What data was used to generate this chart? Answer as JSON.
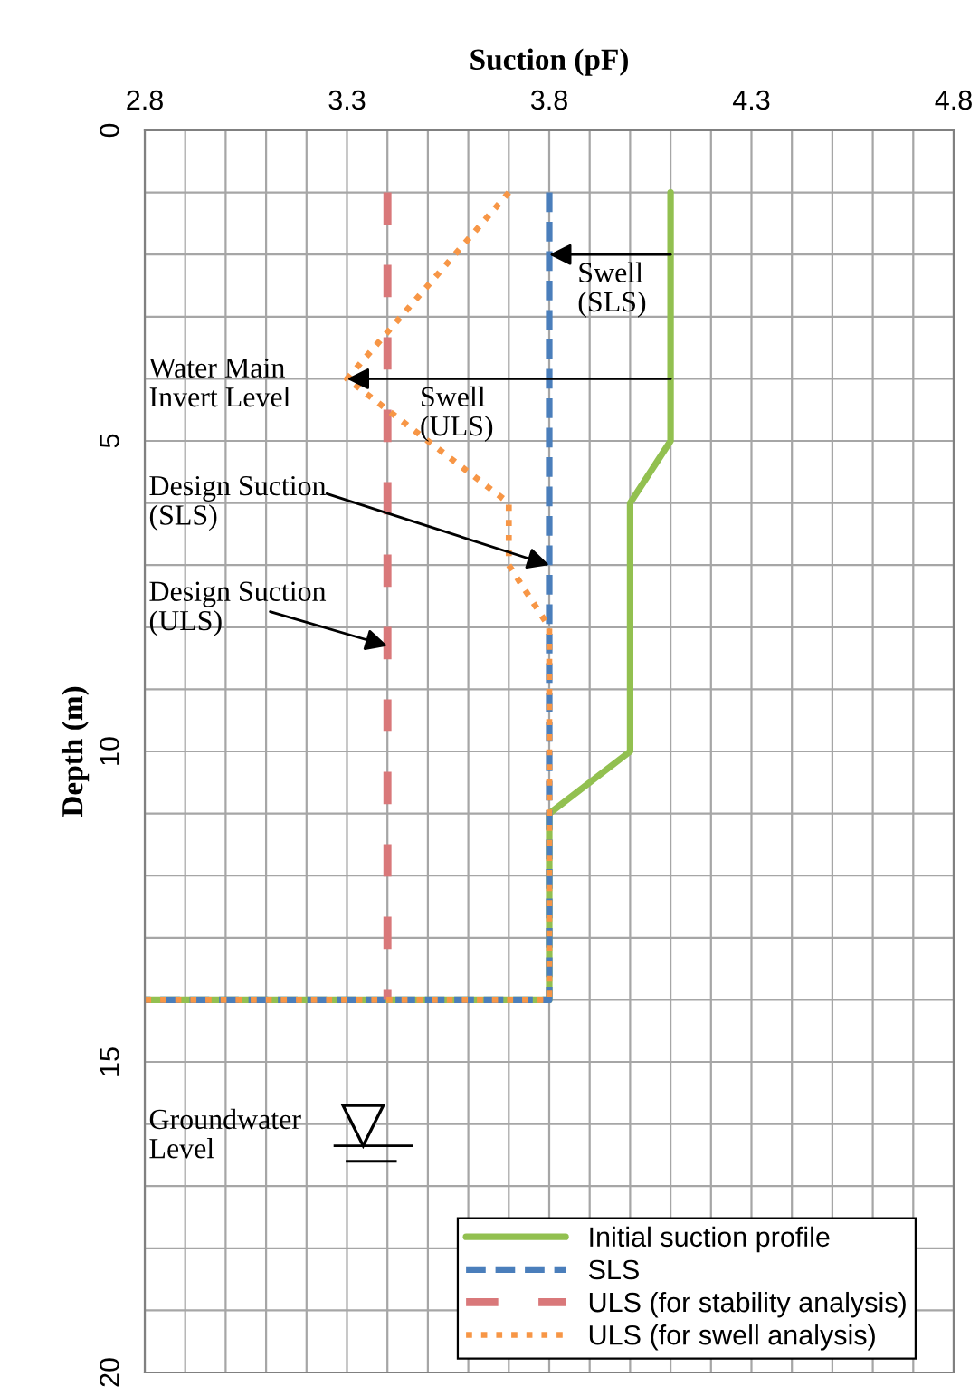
{
  "chart_data": {
    "type": "line",
    "xlabel": "Suction (pF)",
    "ylabel": "Depth (m)",
    "xlim": [
      2.8,
      4.8
    ],
    "xticks": [
      2.8,
      3.3,
      3.8,
      4.3,
      4.8
    ],
    "ylim": [
      20,
      0
    ],
    "yticks": [
      0,
      5,
      10,
      15,
      20
    ],
    "grid": true,
    "legend": "bottom right",
    "series": [
      {
        "name": "Initial suction profile",
        "color": "#92c050",
        "line_style": "solid",
        "x": [
          4.1,
          4.1,
          4.0,
          4.0,
          3.8,
          3.8,
          2.8
        ],
        "values": [
          1,
          5,
          6,
          10,
          11,
          14,
          14
        ]
      },
      {
        "name": "SLS",
        "color": "#4a7ebb",
        "line_style": "dashed",
        "x": [
          3.8,
          3.8,
          2.8
        ],
        "values": [
          1,
          14,
          14
        ]
      },
      {
        "name": "ULS (for stability analysis)",
        "color": "#d9787a",
        "line_style": "dashed",
        "x": [
          3.4,
          3.4
        ],
        "values": [
          1,
          14
        ]
      },
      {
        "name": "ULS (for swell analysis)",
        "color": "#f79646",
        "line_style": "dotted",
        "x": [
          3.7,
          3.3,
          3.7,
          3.7,
          3.8,
          3.8,
          2.8
        ],
        "values": [
          1,
          4,
          6,
          7,
          8,
          14,
          14
        ]
      }
    ],
    "annotations": [
      {
        "text": "Swell\n(SLS)",
        "x": 3.8,
        "y": 2
      },
      {
        "text": "Swell\n(ULS)",
        "x": 3.3,
        "y": 4
      },
      "Water Main\nInvert Level",
      {
        "text": "Design Suction\n(SLS)",
        "x": 3.8,
        "y": 7
      },
      {
        "text": "Design Suction\n(ULS)",
        "x": 3.4,
        "y": 8.3
      },
      "Groundwater\nLevel"
    ]
  }
}
